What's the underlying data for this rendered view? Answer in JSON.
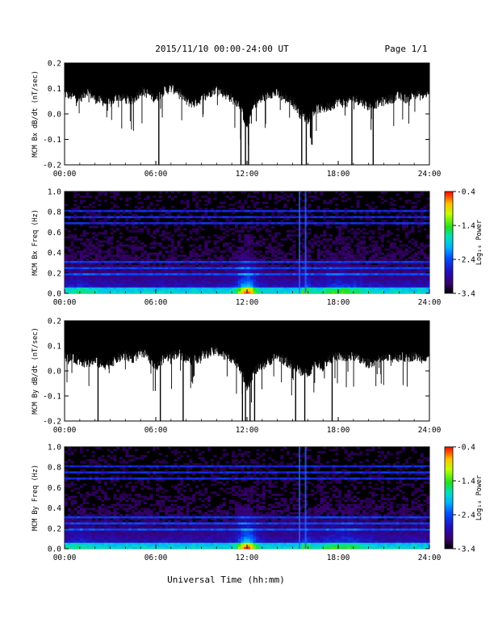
{
  "header": {
    "title": "2015/11/10  00:00-24:00 UT",
    "page": "Page 1/1"
  },
  "x_axis_title": "Universal Time (hh:mm)",
  "colorbar": {
    "label": "Log₁₀ Power",
    "tick_labels": [
      "-0.4",
      "-1.4",
      "-2.4",
      "-3.4"
    ],
    "range": [
      -3.4,
      -0.4
    ]
  },
  "chart_data": [
    {
      "type": "line",
      "ylabel": "MCM Bx dB/dt (nT/sec)",
      "xlim": [
        0,
        24
      ],
      "ylim": [
        -0.2,
        0.2
      ],
      "x_tick_labels": [
        "00:00",
        "06:00",
        "12:00",
        "18:00",
        "24:00"
      ],
      "y_tick_labels": [
        "-0.2",
        "-0.1",
        "0.0",
        "0.1",
        "0.2"
      ],
      "envelope": {
        "x_hours": [
          0,
          0.5,
          1,
          1.5,
          2,
          2.5,
          3,
          3.5,
          4,
          4.5,
          5,
          5.5,
          6,
          6.5,
          7,
          7.5,
          8,
          8.5,
          9,
          9.5,
          10,
          10.5,
          11,
          11.5,
          12,
          12.5,
          13,
          13.5,
          14,
          14.5,
          15,
          15.5,
          16,
          16.5,
          17,
          17.5,
          18,
          18.5,
          19,
          19.5,
          20,
          20.5,
          21,
          21.5,
          22,
          22.5,
          23,
          23.5,
          24
        ],
        "upper": [
          0.2,
          0.2,
          0.2,
          0.2,
          0.2,
          0.2,
          0.2,
          0.2,
          0.2,
          0.2,
          0.2,
          0.2,
          0.2,
          0.2,
          0.2,
          0.2,
          0.2,
          0.2,
          0.2,
          0.2,
          0.2,
          0.2,
          0.2,
          0.2,
          0.2,
          0.2,
          0.2,
          0.2,
          0.2,
          0.2,
          0.2,
          0.2,
          0.2,
          0.2,
          0.2,
          0.2,
          0.2,
          0.2,
          0.2,
          0.2,
          0.2,
          0.2,
          0.2,
          0.2,
          0.2,
          0.2,
          0.2,
          0.2,
          0.2
        ],
        "lower": [
          0.08,
          0.07,
          0.06,
          0.09,
          0.06,
          0.05,
          0.04,
          0.07,
          0.06,
          0.05,
          0.09,
          0.08,
          0.06,
          0.09,
          0.1,
          0.09,
          0.05,
          0.04,
          0.06,
          0.08,
          0.1,
          0.08,
          0.06,
          0.04,
          -0.05,
          0.04,
          0.06,
          0.08,
          0.08,
          0.06,
          0.05,
          0.0,
          -0.02,
          0.02,
          0.02,
          0.03,
          0.05,
          0.04,
          0.06,
          0.05,
          0.03,
          0.04,
          0.05,
          0.06,
          0.07,
          0.06,
          0.08,
          0.07,
          0.08
        ]
      }
    },
    {
      "type": "heatmap",
      "ylabel": "MCM Bx Freq (Hz)",
      "xlim": [
        0,
        24
      ],
      "ylim": [
        0,
        1.0
      ],
      "x_tick_labels": [
        "00:00",
        "06:00",
        "12:00",
        "18:00",
        "24:00"
      ],
      "y_tick_labels": [
        "0.0",
        "0.2",
        "0.4",
        "0.6",
        "0.8",
        "1.0"
      ],
      "zlim": [
        -3.4,
        -0.4
      ]
    },
    {
      "type": "line",
      "ylabel": "MCM By dB/dt (nT/sec)",
      "xlim": [
        0,
        24
      ],
      "ylim": [
        -0.2,
        0.2
      ],
      "x_tick_labels": [
        "00:00",
        "06:00",
        "12:00",
        "18:00",
        "24:00"
      ],
      "y_tick_labels": [
        "-0.2",
        "-0.1",
        "0.0",
        "0.1",
        "0.2"
      ],
      "envelope": {
        "x_hours": [
          0,
          0.5,
          1,
          1.5,
          2,
          2.5,
          3,
          3.5,
          4,
          4.5,
          5,
          5.5,
          6,
          6.5,
          7,
          7.5,
          8,
          8.5,
          9,
          9.5,
          10,
          10.5,
          11,
          11.5,
          12,
          12.5,
          13,
          13.5,
          14,
          14.5,
          15,
          15.5,
          16,
          16.5,
          17,
          17.5,
          18,
          18.5,
          19,
          19.5,
          20,
          20.5,
          21,
          21.5,
          22,
          22.5,
          23,
          23.5,
          24
        ],
        "upper": [
          0.2,
          0.2,
          0.2,
          0.2,
          0.2,
          0.2,
          0.2,
          0.2,
          0.2,
          0.2,
          0.2,
          0.2,
          0.2,
          0.2,
          0.2,
          0.2,
          0.2,
          0.2,
          0.2,
          0.2,
          0.2,
          0.2,
          0.2,
          0.2,
          0.2,
          0.2,
          0.2,
          0.2,
          0.2,
          0.2,
          0.2,
          0.2,
          0.2,
          0.2,
          0.2,
          0.2,
          0.2,
          0.2,
          0.2,
          0.2,
          0.2,
          0.2,
          0.2,
          0.2,
          0.2,
          0.2,
          0.2,
          0.2,
          0.2
        ],
        "lower": [
          0.06,
          0.05,
          0.04,
          0.03,
          0.04,
          0.02,
          0.03,
          0.05,
          0.06,
          0.05,
          0.07,
          0.06,
          0.01,
          0.05,
          0.06,
          0.07,
          0.05,
          0.04,
          0.06,
          0.07,
          0.08,
          0.06,
          0.05,
          0.02,
          -0.06,
          0.0,
          0.02,
          0.04,
          0.06,
          0.04,
          0.02,
          0.0,
          -0.01,
          0.03,
          0.02,
          0.05,
          0.06,
          0.05,
          0.06,
          0.04,
          0.03,
          0.04,
          0.05,
          0.05,
          0.06,
          0.05,
          0.06,
          0.05,
          0.06
        ]
      }
    },
    {
      "type": "heatmap",
      "ylabel": "MCM By Freq (Hz)",
      "xlim": [
        0,
        24
      ],
      "ylim": [
        0,
        1.0
      ],
      "x_tick_labels": [
        "00:00",
        "06:00",
        "12:00",
        "18:00",
        "24:00"
      ],
      "y_tick_labels": [
        "0.0",
        "0.2",
        "0.4",
        "0.6",
        "0.8",
        "1.0"
      ],
      "zlim": [
        -3.4,
        -0.4
      ]
    }
  ]
}
